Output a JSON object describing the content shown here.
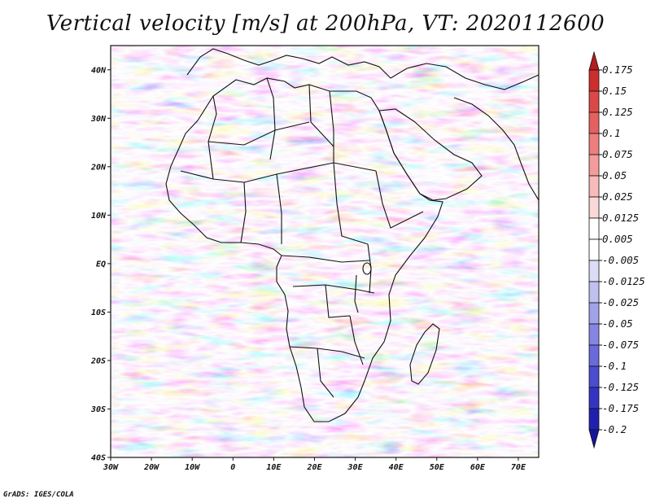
{
  "title": "Vertical velocity [m/s] at 200hPa, VT: 2020112600",
  "credit": "GrADS: IGES/COLA",
  "map": {
    "lon_range": [
      -30,
      75
    ],
    "lat_range": [
      -40,
      45
    ],
    "lon_ticks": [
      "30W",
      "20W",
      "10W",
      "0",
      "10E",
      "20E",
      "30E",
      "40E",
      "50E",
      "60E",
      "70E"
    ],
    "lat_ticks": [
      "40N",
      "30N",
      "20N",
      "10N",
      "EQ",
      "10S",
      "20S",
      "30S",
      "40S"
    ],
    "field": "Vertical velocity",
    "units": "m/s"
  },
  "colorbar": {
    "levels": [
      "0.175",
      "0.15",
      "0.125",
      "0.1",
      "0.075",
      "0.05",
      "0.025",
      "0.0125",
      "0.005",
      "-0.005",
      "-0.0125",
      "-0.025",
      "-0.05",
      "-0.075",
      "-0.1",
      "-0.125",
      "-0.175",
      "-0.2"
    ],
    "colors": [
      "#b41e1e",
      "#cc2e2e",
      "#dc4848",
      "#e66060",
      "#ee7e7e",
      "#f49c9c",
      "#f8baba",
      "#fbd8d8",
      "#ffffff",
      "#ffffff",
      "#dcdcf6",
      "#c0c0f0",
      "#a2a2ea",
      "#8686e2",
      "#6a6ada",
      "#4c4cd0",
      "#3434c4",
      "#2020b0",
      "#16169c"
    ]
  }
}
